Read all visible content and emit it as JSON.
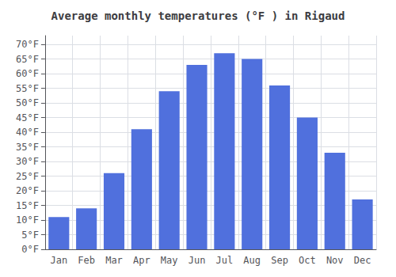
{
  "chart_data": {
    "type": "bar",
    "title": "Average monthly temperatures (°F ) in Rigaud",
    "categories": [
      "Jan",
      "Feb",
      "Mar",
      "Apr",
      "May",
      "Jun",
      "Jul",
      "Aug",
      "Sep",
      "Oct",
      "Nov",
      "Dec"
    ],
    "values": [
      11,
      14,
      26,
      41,
      54,
      63,
      67,
      65,
      56,
      45,
      33,
      17
    ],
    "ylim": [
      0,
      73
    ],
    "yticks": [
      {
        "value": 0,
        "label": "0°F"
      },
      {
        "value": 5,
        "label": "5°F"
      },
      {
        "value": 10,
        "label": "10°F"
      },
      {
        "value": 15,
        "label": "15°F"
      },
      {
        "value": 20,
        "label": "20°F"
      },
      {
        "value": 25,
        "label": "25°F"
      },
      {
        "value": 30,
        "label": "30°F"
      },
      {
        "value": 35,
        "label": "35°F"
      },
      {
        "value": 40,
        "label": "40°F"
      },
      {
        "value": 45,
        "label": "45°F"
      },
      {
        "value": 50,
        "label": "50°F"
      },
      {
        "value": 55,
        "label": "55°F"
      },
      {
        "value": 60,
        "label": "60°F"
      },
      {
        "value": 65,
        "label": "65°F"
      },
      {
        "value": 70,
        "label": "70°F"
      }
    ],
    "grid": true
  }
}
